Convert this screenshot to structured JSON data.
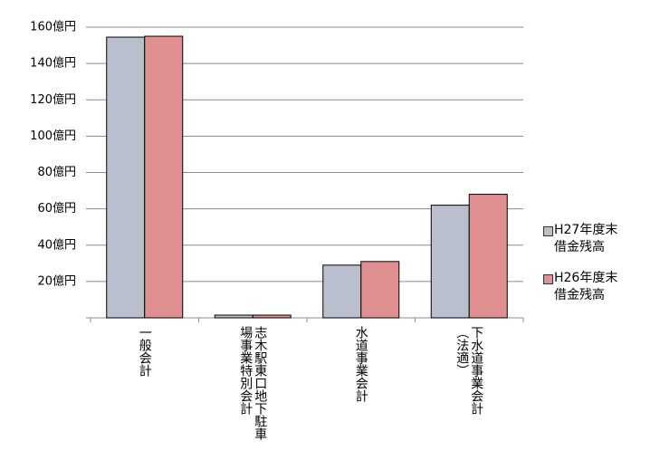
{
  "chart_data": {
    "type": "bar",
    "categories": [
      "一般会計",
      "志木駅東口地下駐車\n場事業特別会計",
      "水道事業会計",
      "下水道事業会計\n（法適）"
    ],
    "series": [
      {
        "name": "H27年度末\n借金残高",
        "color": "#b9bfcc",
        "values": [
          154.5,
          1.5,
          29,
          62
        ]
      },
      {
        "name": "H26年度末\n借金残高",
        "color": "#e09090",
        "values": [
          155,
          1.5,
          31,
          68
        ]
      }
    ],
    "ylim": [
      0,
      160
    ],
    "yticks": [
      {
        "value": 20,
        "label": "20億円"
      },
      {
        "value": 40,
        "label": "40億円"
      },
      {
        "value": 60,
        "label": "60億円"
      },
      {
        "value": 80,
        "label": "80億円"
      },
      {
        "value": 100,
        "label": "100億円"
      },
      {
        "value": 120,
        "label": "120億円"
      },
      {
        "value": 140,
        "label": "140億円"
      },
      {
        "value": 160,
        "label": "160億円"
      }
    ],
    "grid": true,
    "legend": "right"
  }
}
